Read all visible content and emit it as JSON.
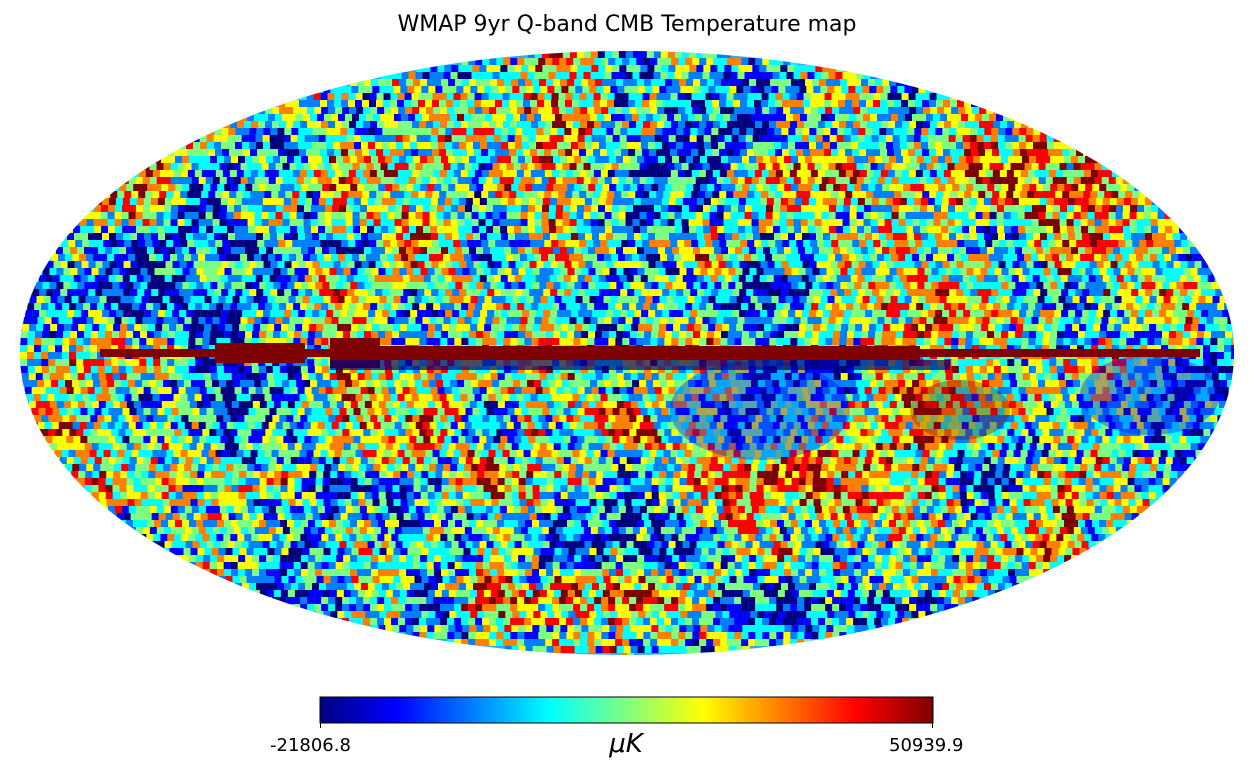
{
  "title": "WMAP 9yr Q-band CMB Temperature map",
  "map": {
    "projection": "mollweide",
    "colormap": "jet"
  },
  "colorbar": {
    "min_label": "-21806.8",
    "max_label": "50939.9",
    "unit_label": "μK",
    "min_value": -21806.8,
    "max_value": 50939.9,
    "colors": [
      "#00007f",
      "#0000ff",
      "#007fff",
      "#00ffff",
      "#7fff7f",
      "#ffff00",
      "#ff7f00",
      "#ff0000",
      "#7f0000"
    ]
  }
}
